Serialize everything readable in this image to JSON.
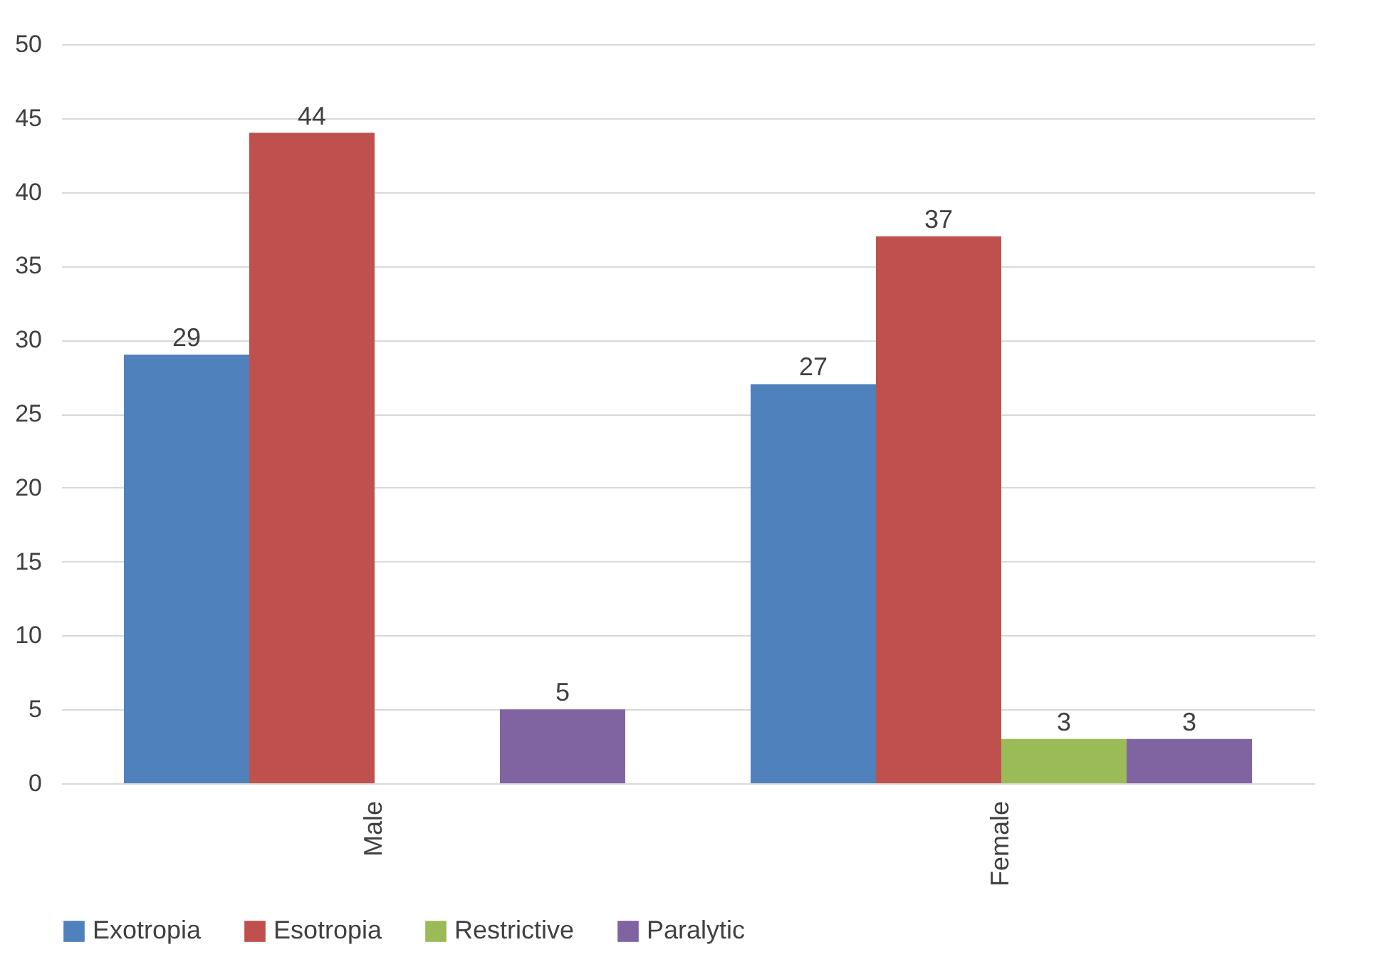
{
  "chart_data": {
    "type": "bar",
    "categories": [
      "Male",
      "Female"
    ],
    "series": [
      {
        "name": "Exotropia",
        "color": "#4f81bd",
        "values": [
          29,
          27
        ]
      },
      {
        "name": "Esotropia",
        "color": "#c0504d",
        "values": [
          44,
          37
        ]
      },
      {
        "name": "Restrictive",
        "color": "#9bbb59",
        "values": [
          null,
          3
        ]
      },
      {
        "name": "Paralytic",
        "color": "#8064a2",
        "values": [
          5,
          3
        ]
      }
    ],
    "ylim": [
      0,
      50
    ],
    "yticks": [
      0,
      5,
      10,
      15,
      20,
      25,
      30,
      35,
      40,
      45,
      50
    ],
    "grid": "y",
    "legend": "bottom",
    "data_labels": true
  }
}
